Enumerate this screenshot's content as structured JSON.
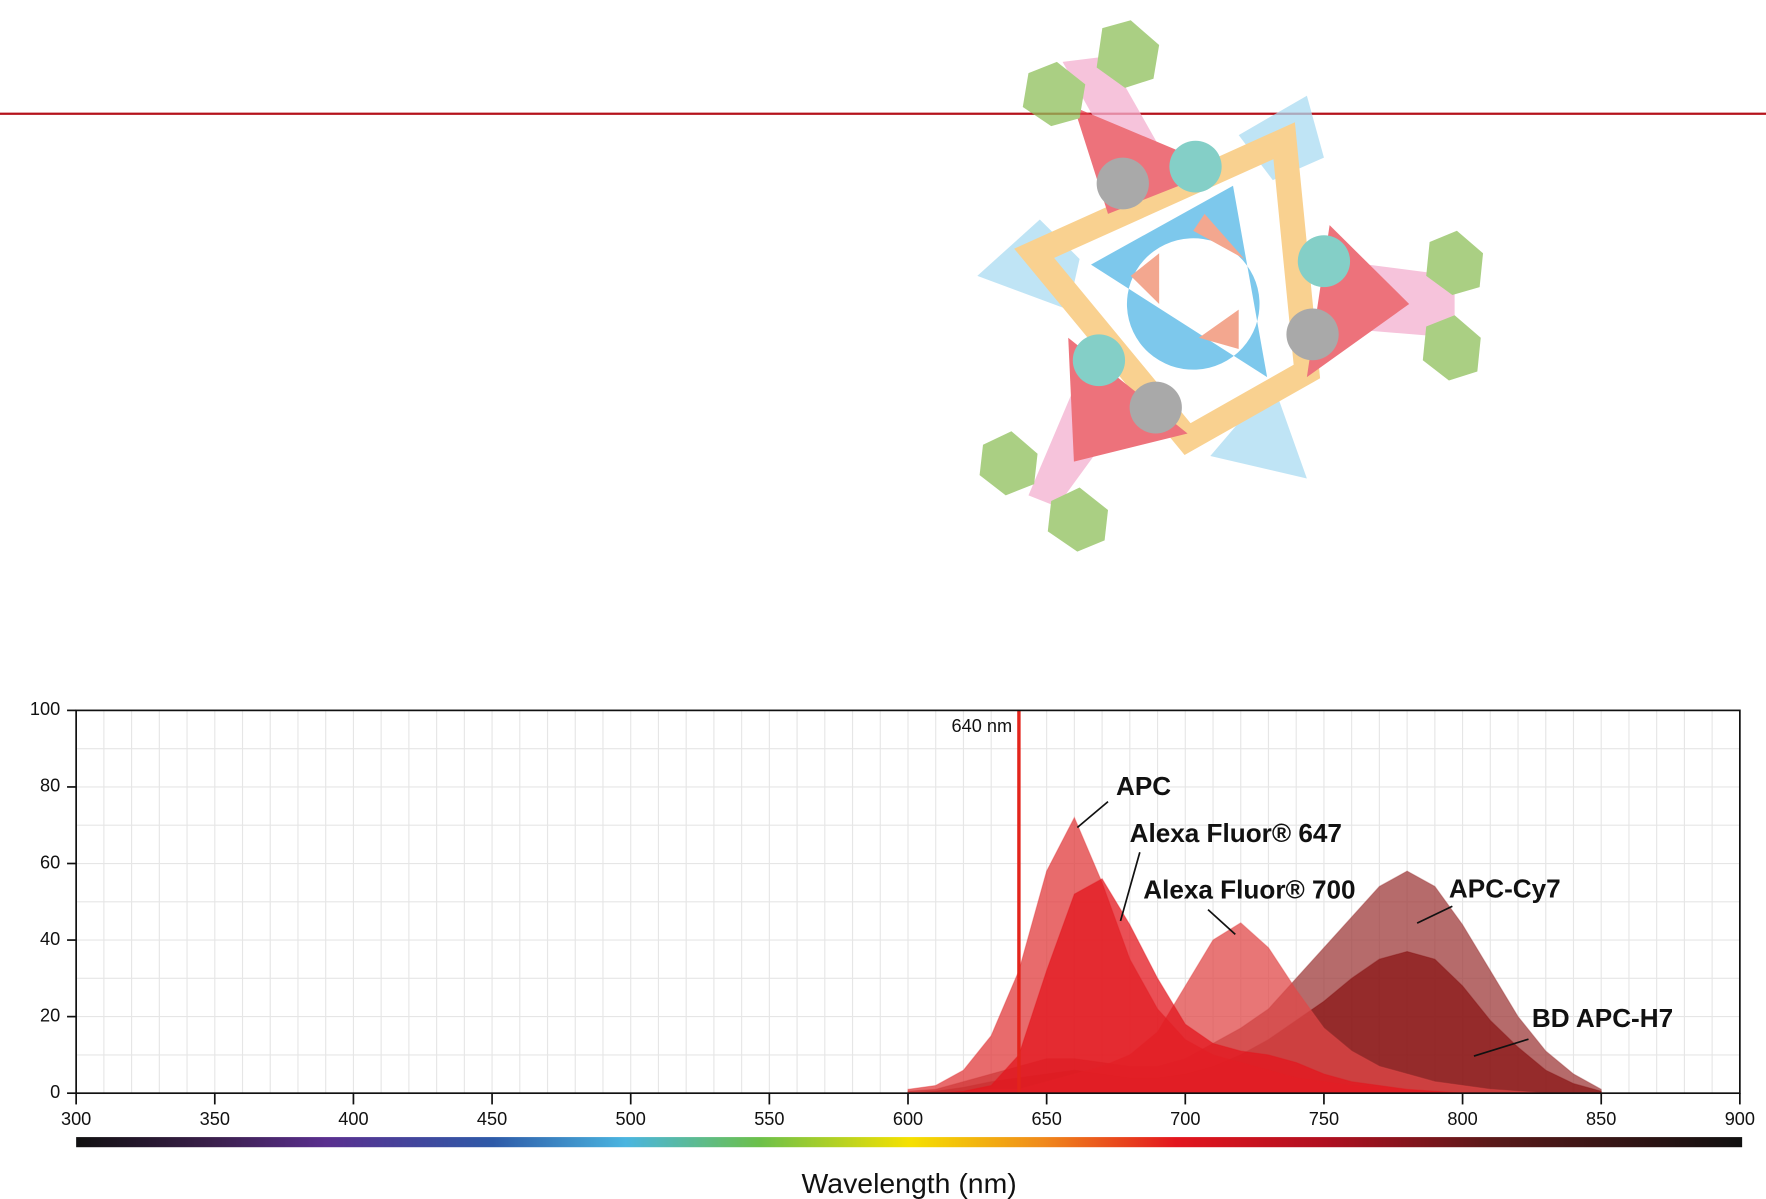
{
  "chart_data": {
    "type": "area",
    "x_label": "Wavelength (nm)",
    "xlim": [
      300,
      900
    ],
    "xticks": [
      300,
      350,
      400,
      450,
      500,
      550,
      600,
      650,
      700,
      750,
      800,
      850,
      900
    ],
    "ylim": [
      0,
      100
    ],
    "yticks": [
      0,
      20,
      40,
      60,
      80,
      100
    ],
    "grid": true,
    "laser": {
      "value": 640,
      "label": "640 nm",
      "color": "#e3241b"
    },
    "x": [
      600,
      610,
      620,
      630,
      640,
      650,
      660,
      670,
      680,
      690,
      700,
      710,
      720,
      730,
      740,
      750,
      760,
      770,
      780,
      790,
      800,
      810,
      820,
      830,
      840,
      850
    ],
    "series": [
      {
        "name": "APC-Cy7",
        "color": "#9e3a3a",
        "values": [
          0.5,
          1,
          3,
          5,
          7,
          9,
          9,
          8,
          7,
          7,
          9,
          13,
          17,
          22,
          30,
          38,
          46,
          54,
          58,
          54,
          44,
          32,
          20,
          11,
          5,
          1
        ]
      },
      {
        "name": "BD APC-H7",
        "color": "#8a1616",
        "values": [
          0,
          0.5,
          1.5,
          3,
          4,
          5,
          6,
          5,
          4,
          4,
          5,
          7,
          10,
          14,
          19,
          24,
          30,
          35,
          37,
          35,
          28,
          19,
          12,
          6,
          2.5,
          0.5
        ]
      },
      {
        "name": "Alexa Fluor® 700",
        "color": "#e04848",
        "values": [
          0,
          0,
          0.5,
          1,
          1,
          3,
          5,
          7,
          10,
          16,
          28,
          40,
          44.5,
          38,
          27,
          17,
          11,
          7,
          5,
          3,
          2,
          1,
          0.5,
          0,
          0,
          0
        ]
      },
      {
        "name": "APC",
        "color": "#e0393b",
        "values": [
          1,
          2,
          6,
          15,
          32,
          58,
          72,
          55,
          35,
          22,
          14,
          10,
          8,
          6,
          4,
          3,
          2,
          1.5,
          1,
          0.5,
          0.3,
          0,
          0,
          0,
          0,
          0
        ]
      },
      {
        "name": "Alexa Fluor® 647",
        "color": "#e3161e",
        "values": [
          0,
          0,
          0.5,
          2,
          10,
          32,
          52,
          56,
          44,
          30,
          18,
          13,
          11,
          10,
          8,
          5,
          3,
          2,
          1,
          0.5,
          0,
          0,
          0,
          0,
          0,
          0
        ]
      }
    ]
  }
}
